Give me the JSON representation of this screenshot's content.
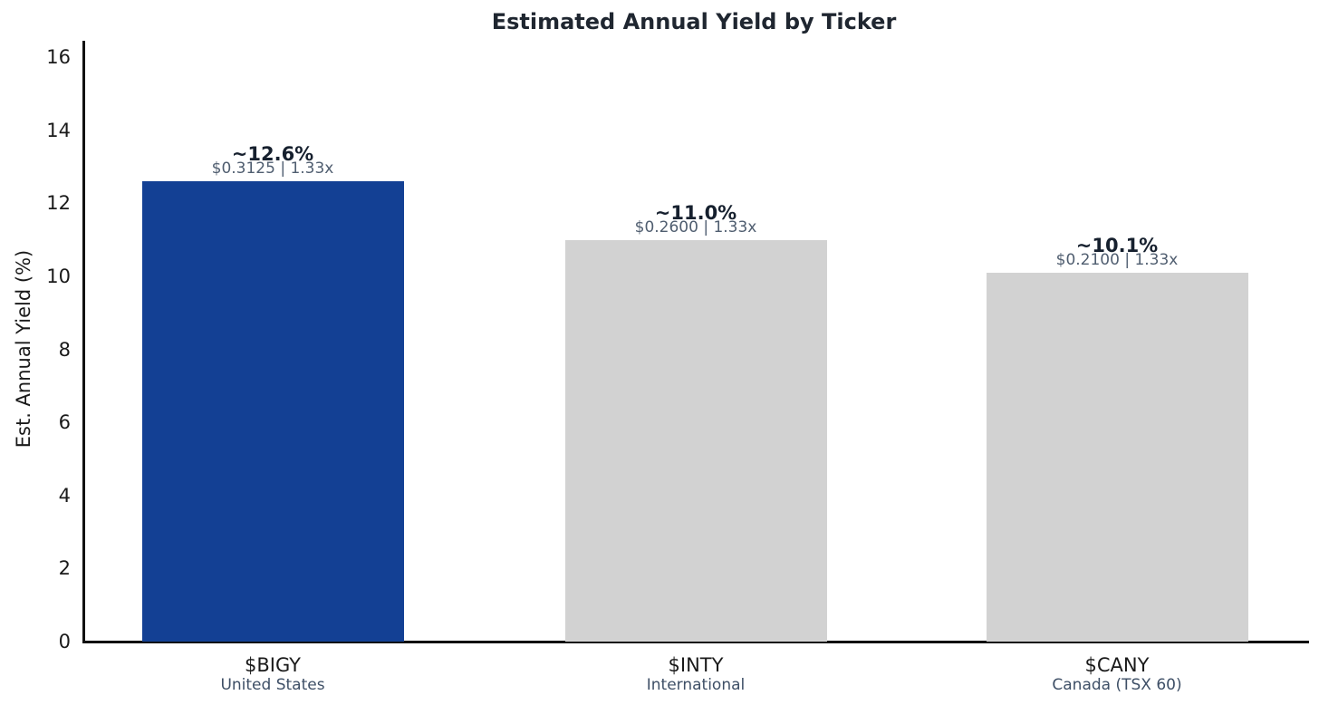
{
  "chart_data": {
    "type": "bar",
    "title": "Estimated Annual Yield by Ticker",
    "xlabel": "",
    "ylabel": "Est. Annual Yield (%)",
    "ylim": [
      0,
      16
    ],
    "yticks": [
      0,
      2,
      4,
      6,
      8,
      10,
      12,
      14,
      16
    ],
    "grid": false,
    "legend": false,
    "background": "#ffffff",
    "categories": [
      "$BIGY",
      "$INTY",
      "$CANY"
    ],
    "category_sublabels": [
      "United States",
      "International",
      "Canada (TSX 60)"
    ],
    "values": [
      12.6,
      11.0,
      10.1
    ],
    "bar_value_labels": [
      "~12.6%",
      "~11.0%",
      "~10.1%"
    ],
    "bar_detail_labels": [
      "$0.3125 | 1.33x",
      "$0.2600 | 1.33x",
      "$0.2100 | 1.33x"
    ],
    "bar_colors": [
      "#134094",
      "#d2d2d2",
      "#d2d2d2"
    ],
    "accent_color": "#134094",
    "muted_bar_color": "#d2d2d2",
    "axis_color": "#111111",
    "title_color": "#1f2630",
    "value_label_color": "#16202e",
    "detail_label_color": "#505e70",
    "category_sublabel_color": "#3e4f66"
  }
}
